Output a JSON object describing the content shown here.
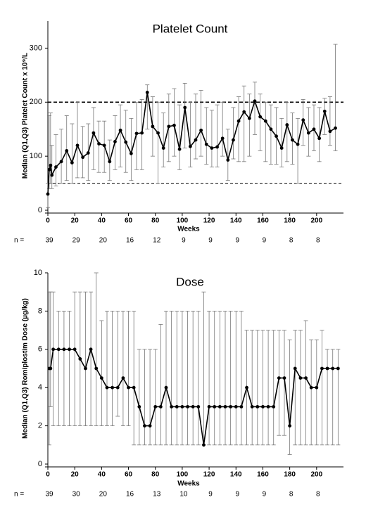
{
  "chart_data": [
    {
      "type": "line",
      "title": "Platelet Count",
      "x_label": "Weeks",
      "y_label": "Median (Q1,Q3)  Platelet Count x 10⁹/L",
      "x": [
        0,
        1,
        2,
        3,
        6,
        10,
        14,
        18,
        22,
        26,
        30,
        34,
        38,
        42,
        46,
        50,
        54,
        58,
        62,
        66,
        70,
        74,
        78,
        82,
        86,
        90,
        94,
        98,
        102,
        106,
        110,
        114,
        118,
        122,
        126,
        130,
        134,
        138,
        142,
        146,
        150,
        154,
        158,
        162,
        166,
        170,
        174,
        178,
        182,
        186,
        190,
        194,
        198,
        202,
        206,
        210,
        214
      ],
      "values": [
        30,
        75,
        83,
        65,
        80,
        90,
        110,
        88,
        120,
        98,
        106,
        143,
        123,
        120,
        90,
        127,
        148,
        126,
        105,
        142,
        143,
        218,
        155,
        143,
        115,
        155,
        157,
        113,
        190,
        118,
        130,
        148,
        122,
        115,
        117,
        133,
        93,
        130,
        165,
        182,
        170,
        202,
        173,
        165,
        150,
        137,
        115,
        158,
        130,
        122,
        167,
        143,
        150,
        133,
        183,
        146,
        152
      ],
      "q1": [
        5,
        40,
        50,
        40,
        45,
        50,
        55,
        50,
        60,
        60,
        55,
        75,
        70,
        70,
        55,
        75,
        80,
        70,
        55,
        75,
        75,
        150,
        100,
        50,
        80,
        90,
        100,
        75,
        115,
        80,
        95,
        100,
        85,
        80,
        80,
        100,
        55,
        95,
        90,
        90,
        100,
        140,
        110,
        90,
        85,
        85,
        80,
        90,
        85,
        50,
        120,
        100,
        110,
        90,
        140,
        120,
        110
      ],
      "q3": [
        50,
        175,
        180,
        120,
        140,
        150,
        175,
        160,
        200,
        155,
        160,
        190,
        165,
        165,
        130,
        175,
        195,
        185,
        170,
        200,
        205,
        232,
        210,
        200,
        180,
        215,
        225,
        195,
        235,
        200,
        215,
        222,
        190,
        185,
        195,
        200,
        150,
        190,
        210,
        230,
        215,
        237,
        215,
        200,
        195,
        190,
        170,
        200,
        180,
        170,
        205,
        190,
        195,
        190,
        207,
        210,
        307
      ],
      "color": "#000000",
      "reference_lines": [
        200,
        50
      ],
      "xlim": [
        0,
        220
      ],
      "xticks": [
        0,
        20,
        40,
        60,
        80,
        100,
        120,
        140,
        160,
        180,
        200
      ],
      "ylim": [
        0,
        350
      ],
      "yticks": [
        0,
        100,
        200,
        300
      ],
      "n_label": "n =",
      "n_values": [
        39,
        29,
        20,
        16,
        12,
        9,
        9,
        9,
        9,
        8,
        8
      ]
    },
    {
      "type": "line",
      "title": "Dose",
      "x_label": "Weeks",
      "y_label": "Median (Q1,Q3)  Romiplostim Dose  (µg/kg)",
      "x": [
        1,
        2,
        4,
        8,
        12,
        16,
        20,
        24,
        28,
        32,
        36,
        40,
        44,
        48,
        52,
        56,
        60,
        64,
        68,
        72,
        76,
        80,
        84,
        88,
        92,
        96,
        100,
        104,
        108,
        112,
        116,
        120,
        124,
        128,
        132,
        136,
        140,
        144,
        148,
        152,
        156,
        160,
        164,
        168,
        172,
        176,
        180,
        184,
        188,
        192,
        196,
        200,
        204,
        208,
        212,
        216
      ],
      "values": [
        5,
        5,
        6,
        6,
        6,
        6,
        6,
        5.5,
        5,
        6,
        5,
        4.5,
        4,
        4,
        4,
        4.5,
        4,
        4,
        3,
        2,
        2,
        3,
        3,
        4,
        3,
        3,
        3,
        3,
        3,
        3,
        1,
        3,
        3,
        3,
        3,
        3,
        3,
        3,
        4,
        3,
        3,
        3,
        3,
        3,
        4.5,
        4.5,
        2,
        5,
        4.5,
        4.5,
        4,
        4,
        5,
        5,
        5,
        5
      ],
      "q1": [
        1,
        3,
        2,
        2,
        2,
        2,
        2,
        2,
        2,
        2,
        2,
        2,
        2,
        2,
        2.5,
        2,
        2,
        1,
        1,
        1,
        1,
        1,
        1,
        1,
        1,
        1,
        1,
        1,
        1,
        1,
        1,
        1,
        1,
        1,
        1,
        1,
        1,
        1,
        1,
        1,
        1,
        1,
        1,
        1,
        1.5,
        1.5,
        0.5,
        1,
        1,
        1,
        1,
        1,
        1,
        1,
        1,
        1
      ],
      "q3": [
        9,
        9,
        9,
        8,
        8,
        8,
        9,
        9,
        9,
        9,
        10,
        7.5,
        8,
        8,
        8,
        8,
        8,
        8,
        6,
        6,
        6,
        6,
        7.3,
        8,
        8,
        8,
        8,
        8,
        8,
        8,
        9,
        8,
        8,
        8,
        8,
        8,
        8,
        8,
        7,
        7,
        7,
        7,
        7,
        7,
        7,
        7,
        6.5,
        7,
        7,
        7.5,
        6.5,
        6.5,
        7,
        6,
        6,
        6
      ],
      "color": "#000000",
      "xlim": [
        0,
        220
      ],
      "xticks": [
        0,
        20,
        40,
        60,
        80,
        100,
        120,
        140,
        160,
        180,
        200
      ],
      "ylim": [
        0,
        10
      ],
      "yticks": [
        0,
        2,
        4,
        6,
        8,
        10
      ],
      "n_label": "n =",
      "n_values": [
        39,
        30,
        20,
        16,
        13,
        10,
        9,
        9,
        9,
        8,
        8
      ]
    }
  ]
}
